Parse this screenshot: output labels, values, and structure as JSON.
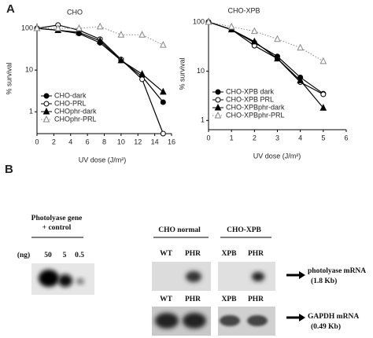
{
  "labels": {
    "a": "A",
    "b": "B"
  },
  "chart_data": [
    {
      "type": "line",
      "title": "CHO",
      "xlabel": "UV dose (J/m²)",
      "ylabel": "% survival",
      "yscale": "log",
      "ylim": [
        0.3,
        130
      ],
      "yticks": [
        1,
        10,
        100
      ],
      "xlim": [
        0,
        16
      ],
      "xticks": [
        0,
        2,
        4,
        6,
        8,
        10,
        12,
        14,
        16
      ],
      "grid": false,
      "legend": "lower left",
      "x": [
        0,
        2.5,
        5,
        7.5,
        10,
        12.5,
        15
      ],
      "series": [
        {
          "name": "CHO-dark",
          "color": "#000000",
          "marker": "filled-circle",
          "dash": "solid",
          "values": [
            100,
            90,
            75,
            45,
            17,
            7,
            1.7
          ]
        },
        {
          "name": "CHO-PRL",
          "color": "#000000",
          "marker": "open-circle",
          "dash": "solid",
          "values": [
            100,
            120,
            90,
            55,
            18,
            6,
            0.3
          ]
        },
        {
          "name": "CHOphr-dark",
          "color": "#000000",
          "marker": "filled-triangle",
          "dash": "solid",
          "values": [
            100,
            90,
            80,
            50,
            17,
            8,
            3
          ]
        },
        {
          "name": "CHOphr-PRL",
          "color": "#888888",
          "marker": "open-triangle",
          "dash": "dotted",
          "values": [
            100,
            100,
            100,
            110,
            70,
            70,
            40
          ]
        }
      ]
    },
    {
      "type": "line",
      "title": "CHO-XPB",
      "xlabel": "UV dose (J/m²)",
      "ylabel": "% survival",
      "yscale": "log",
      "ylim": [
        0.65,
        120
      ],
      "yticks": [
        1,
        10,
        100
      ],
      "xlim": [
        0,
        6
      ],
      "xticks": [
        0,
        1,
        2,
        3,
        4,
        5,
        6
      ],
      "grid": false,
      "legend": "lower left",
      "x": [
        0,
        1,
        2,
        3,
        4,
        5
      ],
      "series": [
        {
          "name": "CHO-XPB dark",
          "color": "#000000",
          "marker": "filled-circle",
          "dash": "solid",
          "values": [
            100,
            70,
            38,
            20,
            7.5,
            3.5
          ]
        },
        {
          "name": "CHO-XPB PRL",
          "color": "#000000",
          "marker": "open-circle",
          "dash": "solid",
          "values": [
            100,
            70,
            33,
            18,
            6,
            3.4
          ]
        },
        {
          "name": "CHO-XPBphr-dark",
          "color": "#000000",
          "marker": "filled-triangle",
          "dash": "solid",
          "values": [
            100,
            70,
            40,
            18,
            6.5,
            1.8
          ]
        },
        {
          "name": "CHO-XPBphr-PRL",
          "color": "#888888",
          "marker": "open-triangle",
          "dash": "dotted",
          "values": [
            100,
            80,
            65,
            45,
            30,
            16
          ]
        }
      ]
    }
  ],
  "blots": {
    "control": {
      "title": [
        "Photolyase gene",
        "+ control"
      ],
      "unit": "(ng)",
      "lanes": [
        "50",
        "5",
        "0.5"
      ]
    },
    "groups": [
      "CHO normal",
      "CHO-XPB"
    ],
    "rows": [
      {
        "lanes": [
          "WT",
          "PHR",
          "XPB",
          "PHR"
        ],
        "target": [
          "photolyase mRNA",
          "(1.8 Kb)"
        ]
      },
      {
        "lanes": [
          "WT",
          "PHR",
          "XPB",
          "PHR"
        ],
        "target": [
          "GAPDH mRNA",
          "(0.49 Kb)"
        ]
      }
    ]
  }
}
